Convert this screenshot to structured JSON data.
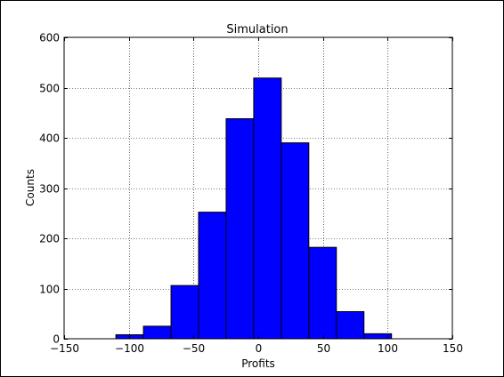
{
  "chart_data": {
    "type": "bar",
    "title": "Simulation",
    "xlabel": "Profits",
    "ylabel": "Counts",
    "xlim": [
      -150,
      150
    ],
    "ylim": [
      0,
      600
    ],
    "grid": true,
    "xticks": [
      -150,
      -100,
      -50,
      0,
      50,
      100,
      150
    ],
    "xtick_labels": [
      "−150",
      "−100",
      "−50",
      "0",
      "50",
      "100",
      "150"
    ],
    "yticks": [
      0,
      100,
      200,
      300,
      400,
      500,
      600
    ],
    "ytick_labels": [
      "0",
      "100",
      "200",
      "300",
      "400",
      "500",
      "600"
    ],
    "bins": [
      {
        "x0": -110,
        "x1": -88.7,
        "value": 8
      },
      {
        "x0": -88.7,
        "x1": -67.4,
        "value": 25
      },
      {
        "x0": -67.4,
        "x1": -46.1,
        "value": 106
      },
      {
        "x0": -46.1,
        "x1": -24.8,
        "value": 252
      },
      {
        "x0": -24.8,
        "x1": -3.5,
        "value": 438
      },
      {
        "x0": -3.5,
        "x1": 17.8,
        "value": 519
      },
      {
        "x0": 17.8,
        "x1": 39.1,
        "value": 390
      },
      {
        "x0": 39.1,
        "x1": 60.4,
        "value": 182
      },
      {
        "x0": 60.4,
        "x1": 81.7,
        "value": 54
      },
      {
        "x0": 81.7,
        "x1": 103,
        "value": 10
      }
    ],
    "bar_color": "#0000ff",
    "edge_color": "#000000"
  }
}
